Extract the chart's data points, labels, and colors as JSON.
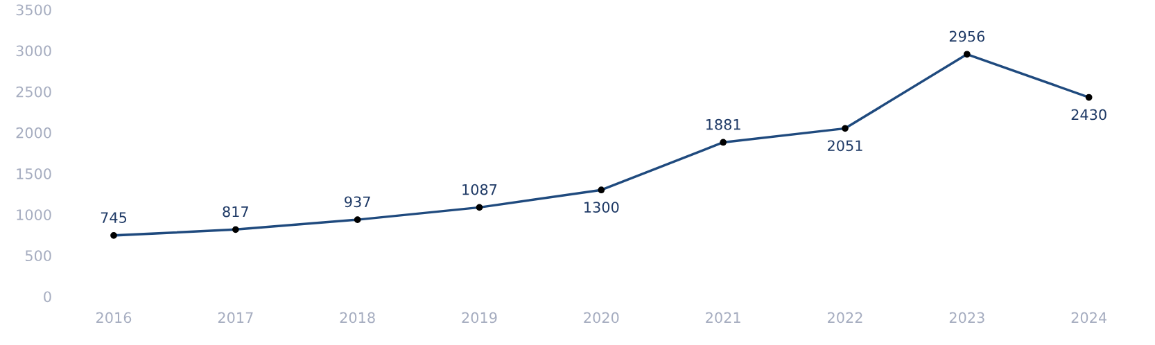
{
  "chart_data": {
    "type": "line",
    "categories": [
      "2016",
      "2017",
      "2018",
      "2019",
      "2020",
      "2021",
      "2022",
      "2023",
      "2024"
    ],
    "series": [
      {
        "color": "#1f4a7e",
        "values": [
          745,
          817,
          937,
          1087,
          1300,
          1881,
          2051,
          2956,
          2430
        ]
      }
    ],
    "ylim": [
      0,
      3500
    ],
    "yticks": [
      0,
      500,
      1000,
      1500,
      2000,
      2500,
      3000,
      3500
    ],
    "grid": false,
    "marker": "circle",
    "line_style": "solid",
    "data_labels": true
  }
}
